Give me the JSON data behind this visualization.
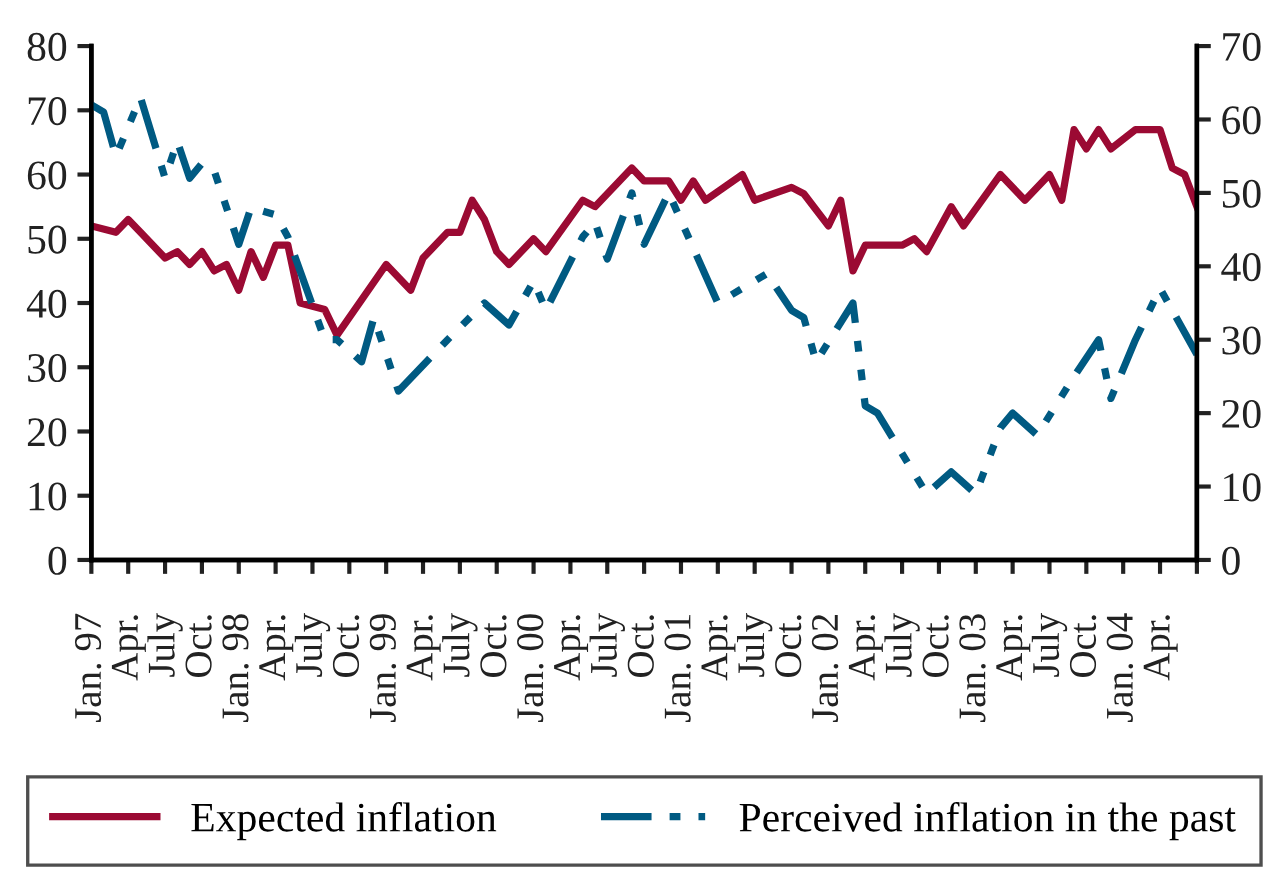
{
  "chart_data": {
    "type": "line",
    "x": [
      "1997-01",
      "1997-03",
      "1997-04",
      "1997-05",
      "1997-07",
      "1997-08",
      "1997-09",
      "1997-10",
      "1997-11",
      "1997-12",
      "1998-01",
      "1998-02",
      "1998-03",
      "1998-04",
      "1998-05",
      "1998-06",
      "1998-08",
      "1998-09",
      "1999-01",
      "1999-03",
      "1999-04",
      "1999-06",
      "1999-07",
      "1999-08",
      "1999-09",
      "1999-10",
      "1999-11",
      "2000-01",
      "2000-02",
      "2000-05",
      "2000-06",
      "2000-09",
      "2000-10",
      "2000-12",
      "2001-01",
      "2001-02",
      "2001-03",
      "2001-06",
      "2001-07",
      "2001-10",
      "2001-11",
      "2002-01",
      "2002-02",
      "2002-03",
      "2002-04",
      "2002-07",
      "2002-08",
      "2002-09",
      "2002-11",
      "2002-12",
      "2003-03",
      "2003-05",
      "2003-07",
      "2003-08",
      "2003-09",
      "2003-10",
      "2003-11",
      "2003-12",
      "2004-02",
      "2004-04",
      "2004-05",
      "2004-06",
      "2004-07"
    ],
    "series": [
      {
        "name": "Expected inflation",
        "color": "#9b0a33",
        "line_style": "solid",
        "values": [
          52,
          51,
          53,
          51,
          47,
          48,
          46,
          48,
          45,
          46,
          42,
          48,
          44,
          49,
          49,
          40,
          39,
          35,
          46,
          42,
          47,
          51,
          51,
          56,
          53,
          48,
          46,
          50,
          48,
          56,
          55,
          61,
          59,
          59,
          56,
          59,
          56,
          60,
          56,
          58,
          57,
          52,
          56,
          45,
          49,
          49,
          50,
          48,
          55,
          52,
          60,
          56,
          60,
          56,
          67,
          64,
          67,
          64,
          67,
          67,
          61,
          60,
          55
        ]
      },
      {
        "name": "Perceived inflation in the past",
        "color": "#005a82",
        "line_style": "dashed",
        "axis": "y2",
        "x": [
          "1997-01",
          "1997-02",
          "1997-03",
          "1997-05",
          "1997-07",
          "1997-08",
          "1997-09",
          "1997-10",
          "1997-11",
          "1998-01",
          "1998-02",
          "1998-04",
          "1998-05",
          "1998-08",
          "1998-09",
          "1998-11",
          "1998-12",
          "1999-02",
          "1999-06",
          "1999-09",
          "1999-11",
          "2000-01",
          "2000-02",
          "2000-05",
          "2000-06",
          "2000-07",
          "2000-09",
          "2000-10",
          "2000-12",
          "2001-04",
          "2001-08",
          "2001-10",
          "2001-11",
          "2001-12",
          "2002-03",
          "2002-04",
          "2002-05",
          "2002-09",
          "2002-11",
          "2003-01",
          "2003-03",
          "2003-04",
          "2003-06",
          "2003-09",
          "2003-11",
          "2003-12",
          "2004-02",
          "2004-04",
          "2004-05",
          "2004-07"
        ],
        "values": [
          62,
          61,
          55,
          63,
          52,
          57,
          52,
          54,
          53,
          43,
          48,
          47,
          44,
          30,
          30,
          27,
          33,
          23,
          30,
          35,
          32,
          38,
          34,
          44,
          46,
          41,
          50,
          43,
          50,
          35,
          39,
          34,
          33,
          27,
          35,
          21,
          20,
          9,
          12,
          9,
          18,
          20,
          17,
          25,
          30,
          22,
          30,
          37,
          34,
          28
        ]
      }
    ],
    "ylim": [
      0,
      80
    ],
    "yticks": [
      0,
      10,
      20,
      30,
      40,
      50,
      60,
      70,
      80
    ],
    "y2lim": [
      0,
      70
    ],
    "y2ticks": [
      0,
      10,
      20,
      30,
      40,
      50,
      60,
      70
    ],
    "xlim": [
      "1997-01",
      "2004-07"
    ],
    "xticks": [
      {
        "value": "1997-01",
        "label": "Jan. 97"
      },
      {
        "value": "1997-04",
        "label": "Apr."
      },
      {
        "value": "1997-07",
        "label": "July"
      },
      {
        "value": "1997-10",
        "label": "Oct."
      },
      {
        "value": "1998-01",
        "label": "Jan. 98"
      },
      {
        "value": "1998-04",
        "label": "Apr."
      },
      {
        "value": "1998-07",
        "label": "July"
      },
      {
        "value": "1998-10",
        "label": "Oct."
      },
      {
        "value": "1999-01",
        "label": "Jan. 99"
      },
      {
        "value": "1999-04",
        "label": "Apr."
      },
      {
        "value": "1999-07",
        "label": "July"
      },
      {
        "value": "1999-10",
        "label": "Oct."
      },
      {
        "value": "2000-01",
        "label": "Jan. 00"
      },
      {
        "value": "2000-04",
        "label": "Apr."
      },
      {
        "value": "2000-07",
        "label": "July"
      },
      {
        "value": "2000-10",
        "label": "Oct."
      },
      {
        "value": "2001-01",
        "label": "Jan. 01"
      },
      {
        "value": "2001-04",
        "label": "Apr."
      },
      {
        "value": "2001-07",
        "label": "July"
      },
      {
        "value": "2001-10",
        "label": "Oct."
      },
      {
        "value": "2002-01",
        "label": "Jan. 02"
      },
      {
        "value": "2002-04",
        "label": "Apr."
      },
      {
        "value": "2002-07",
        "label": "July"
      },
      {
        "value": "2002-10",
        "label": "Oct."
      },
      {
        "value": "2003-01",
        "label": "Jan. 03"
      },
      {
        "value": "2003-04",
        "label": "Apr."
      },
      {
        "value": "2003-07",
        "label": "July"
      },
      {
        "value": "2003-10",
        "label": "Oct."
      },
      {
        "value": "2004-01",
        "label": "Jan. 04"
      },
      {
        "value": "2004-04",
        "label": "Apr."
      },
      {
        "value": "2004-07",
        "label": null
      }
    ],
    "grid": false,
    "legend": "bottom",
    "marker": "none"
  }
}
